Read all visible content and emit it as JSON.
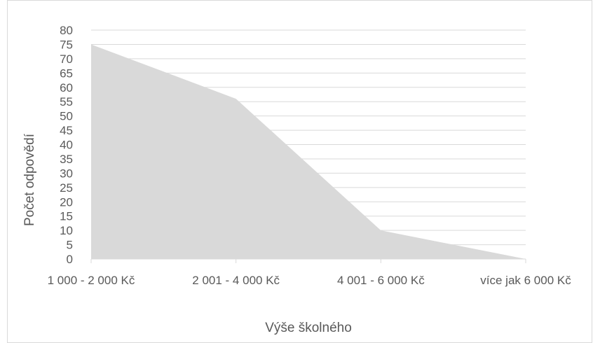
{
  "chart_data": {
    "type": "area",
    "categories": [
      "1 000 - 2 000 Kč",
      "2 001 - 4 000 Kč",
      "4 001 - 6 000 Kč",
      "více jak 6 000 Kč"
    ],
    "series": [
      {
        "values": [
          75,
          56,
          10,
          0
        ]
      }
    ],
    "xlabel": "Výše školného",
    "ylabel": "Počet  odpovědí",
    "ylim": [
      0,
      80
    ],
    "ytick_step": 5,
    "grid": true,
    "colors": {
      "area": "#d9d9d9",
      "grid": "#d9d9d9",
      "text": "#595959"
    }
  }
}
